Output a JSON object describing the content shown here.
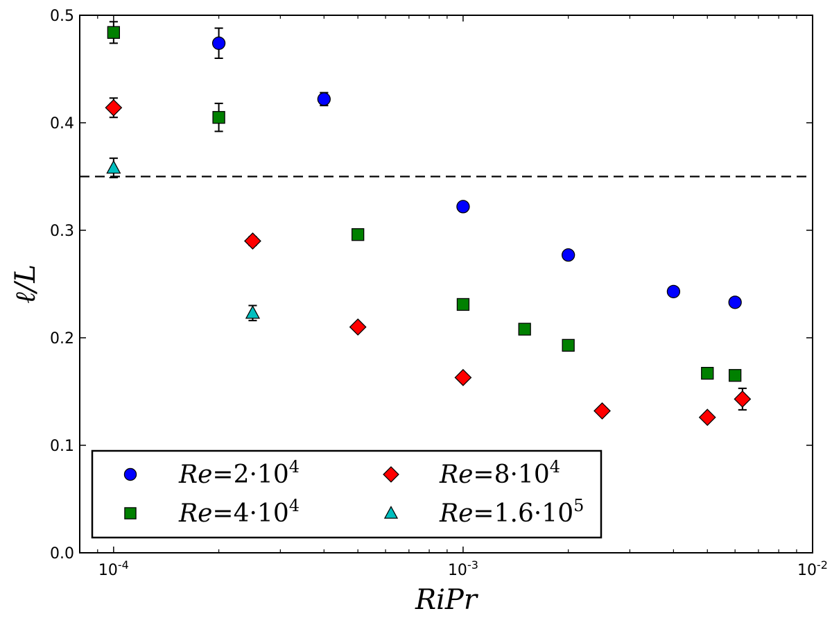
{
  "chart_data": {
    "type": "scatter",
    "title": "",
    "xlabel": "RiPr",
    "ylabel": "ℓ/L",
    "xscale": "log",
    "xlim": [
      8e-05,
      0.01
    ],
    "ylim": [
      0.0,
      0.5
    ],
    "x_ticks": [
      {
        "value": 0.0001,
        "base": "10",
        "exp": "-4"
      },
      {
        "value": 0.001,
        "base": "10",
        "exp": "-3"
      },
      {
        "value": 0.01,
        "base": "10",
        "exp": "-2"
      }
    ],
    "y_ticks": [
      {
        "value": 0.0,
        "label": "0.0"
      },
      {
        "value": 0.1,
        "label": "0.1"
      },
      {
        "value": 0.2,
        "label": "0.2"
      },
      {
        "value": 0.3,
        "label": "0.3"
      },
      {
        "value": 0.4,
        "label": "0.4"
      },
      {
        "value": 0.5,
        "label": "0.5"
      }
    ],
    "reference_line": {
      "y": 0.35,
      "style": "dashed"
    },
    "legend_position": "lower-left",
    "series": [
      {
        "name": "Re = 2·10^4",
        "label_parts": {
          "prefix": "Re",
          "eq": "=",
          "coef": "2",
          "exp": "4"
        },
        "marker": "circle",
        "color": "#0000ff",
        "points": [
          {
            "x": 0.0002,
            "y": 0.474,
            "err": 0.014
          },
          {
            "x": 0.0004,
            "y": 0.422,
            "err": 0.006
          },
          {
            "x": 0.001,
            "y": 0.322,
            "err": 0.002
          },
          {
            "x": 0.002,
            "y": 0.277,
            "err": 0.002
          },
          {
            "x": 0.004,
            "y": 0.243,
            "err": 0.002
          },
          {
            "x": 0.006,
            "y": 0.233,
            "err": 0.002
          }
        ]
      },
      {
        "name": "Re = 4·10^4",
        "label_parts": {
          "prefix": "Re",
          "eq": "=",
          "coef": "4",
          "exp": "4"
        },
        "marker": "square",
        "color": "#008000",
        "points": [
          {
            "x": 0.0001,
            "y": 0.484,
            "err": 0.01
          },
          {
            "x": 0.0002,
            "y": 0.405,
            "err": 0.013
          },
          {
            "x": 0.0005,
            "y": 0.296,
            "err": 0.003
          },
          {
            "x": 0.001,
            "y": 0.231,
            "err": 0.003
          },
          {
            "x": 0.0015,
            "y": 0.208,
            "err": 0.003
          },
          {
            "x": 0.002,
            "y": 0.193,
            "err": 0.002
          },
          {
            "x": 0.005,
            "y": 0.167,
            "err": 0.003
          },
          {
            "x": 0.006,
            "y": 0.165,
            "err": 0.002
          }
        ]
      },
      {
        "name": "Re = 8·10^4",
        "label_parts": {
          "prefix": "Re",
          "eq": "=",
          "coef": "8",
          "exp": "4"
        },
        "marker": "diamond",
        "color": "#ff0000",
        "points": [
          {
            "x": 0.0001,
            "y": 0.414,
            "err": 0.009
          },
          {
            "x": 0.00025,
            "y": 0.29,
            "err": 0.004
          },
          {
            "x": 0.0005,
            "y": 0.21,
            "err": 0.003
          },
          {
            "x": 0.001,
            "y": 0.163,
            "err": 0.002
          },
          {
            "x": 0.0025,
            "y": 0.132,
            "err": 0.002
          },
          {
            "x": 0.005,
            "y": 0.126,
            "err": 0.002
          },
          {
            "x": 0.0063,
            "y": 0.143,
            "err": 0.01
          }
        ]
      },
      {
        "name": "Re = 1.6·10^5",
        "label_parts": {
          "prefix": "Re",
          "eq": "=",
          "coef": "1.6",
          "exp": "5"
        },
        "marker": "triangle",
        "color": "#00bfbf",
        "points": [
          {
            "x": 0.0001,
            "y": 0.358,
            "err": 0.009
          },
          {
            "x": 0.00025,
            "y": 0.223,
            "err": 0.007
          }
        ]
      }
    ]
  }
}
